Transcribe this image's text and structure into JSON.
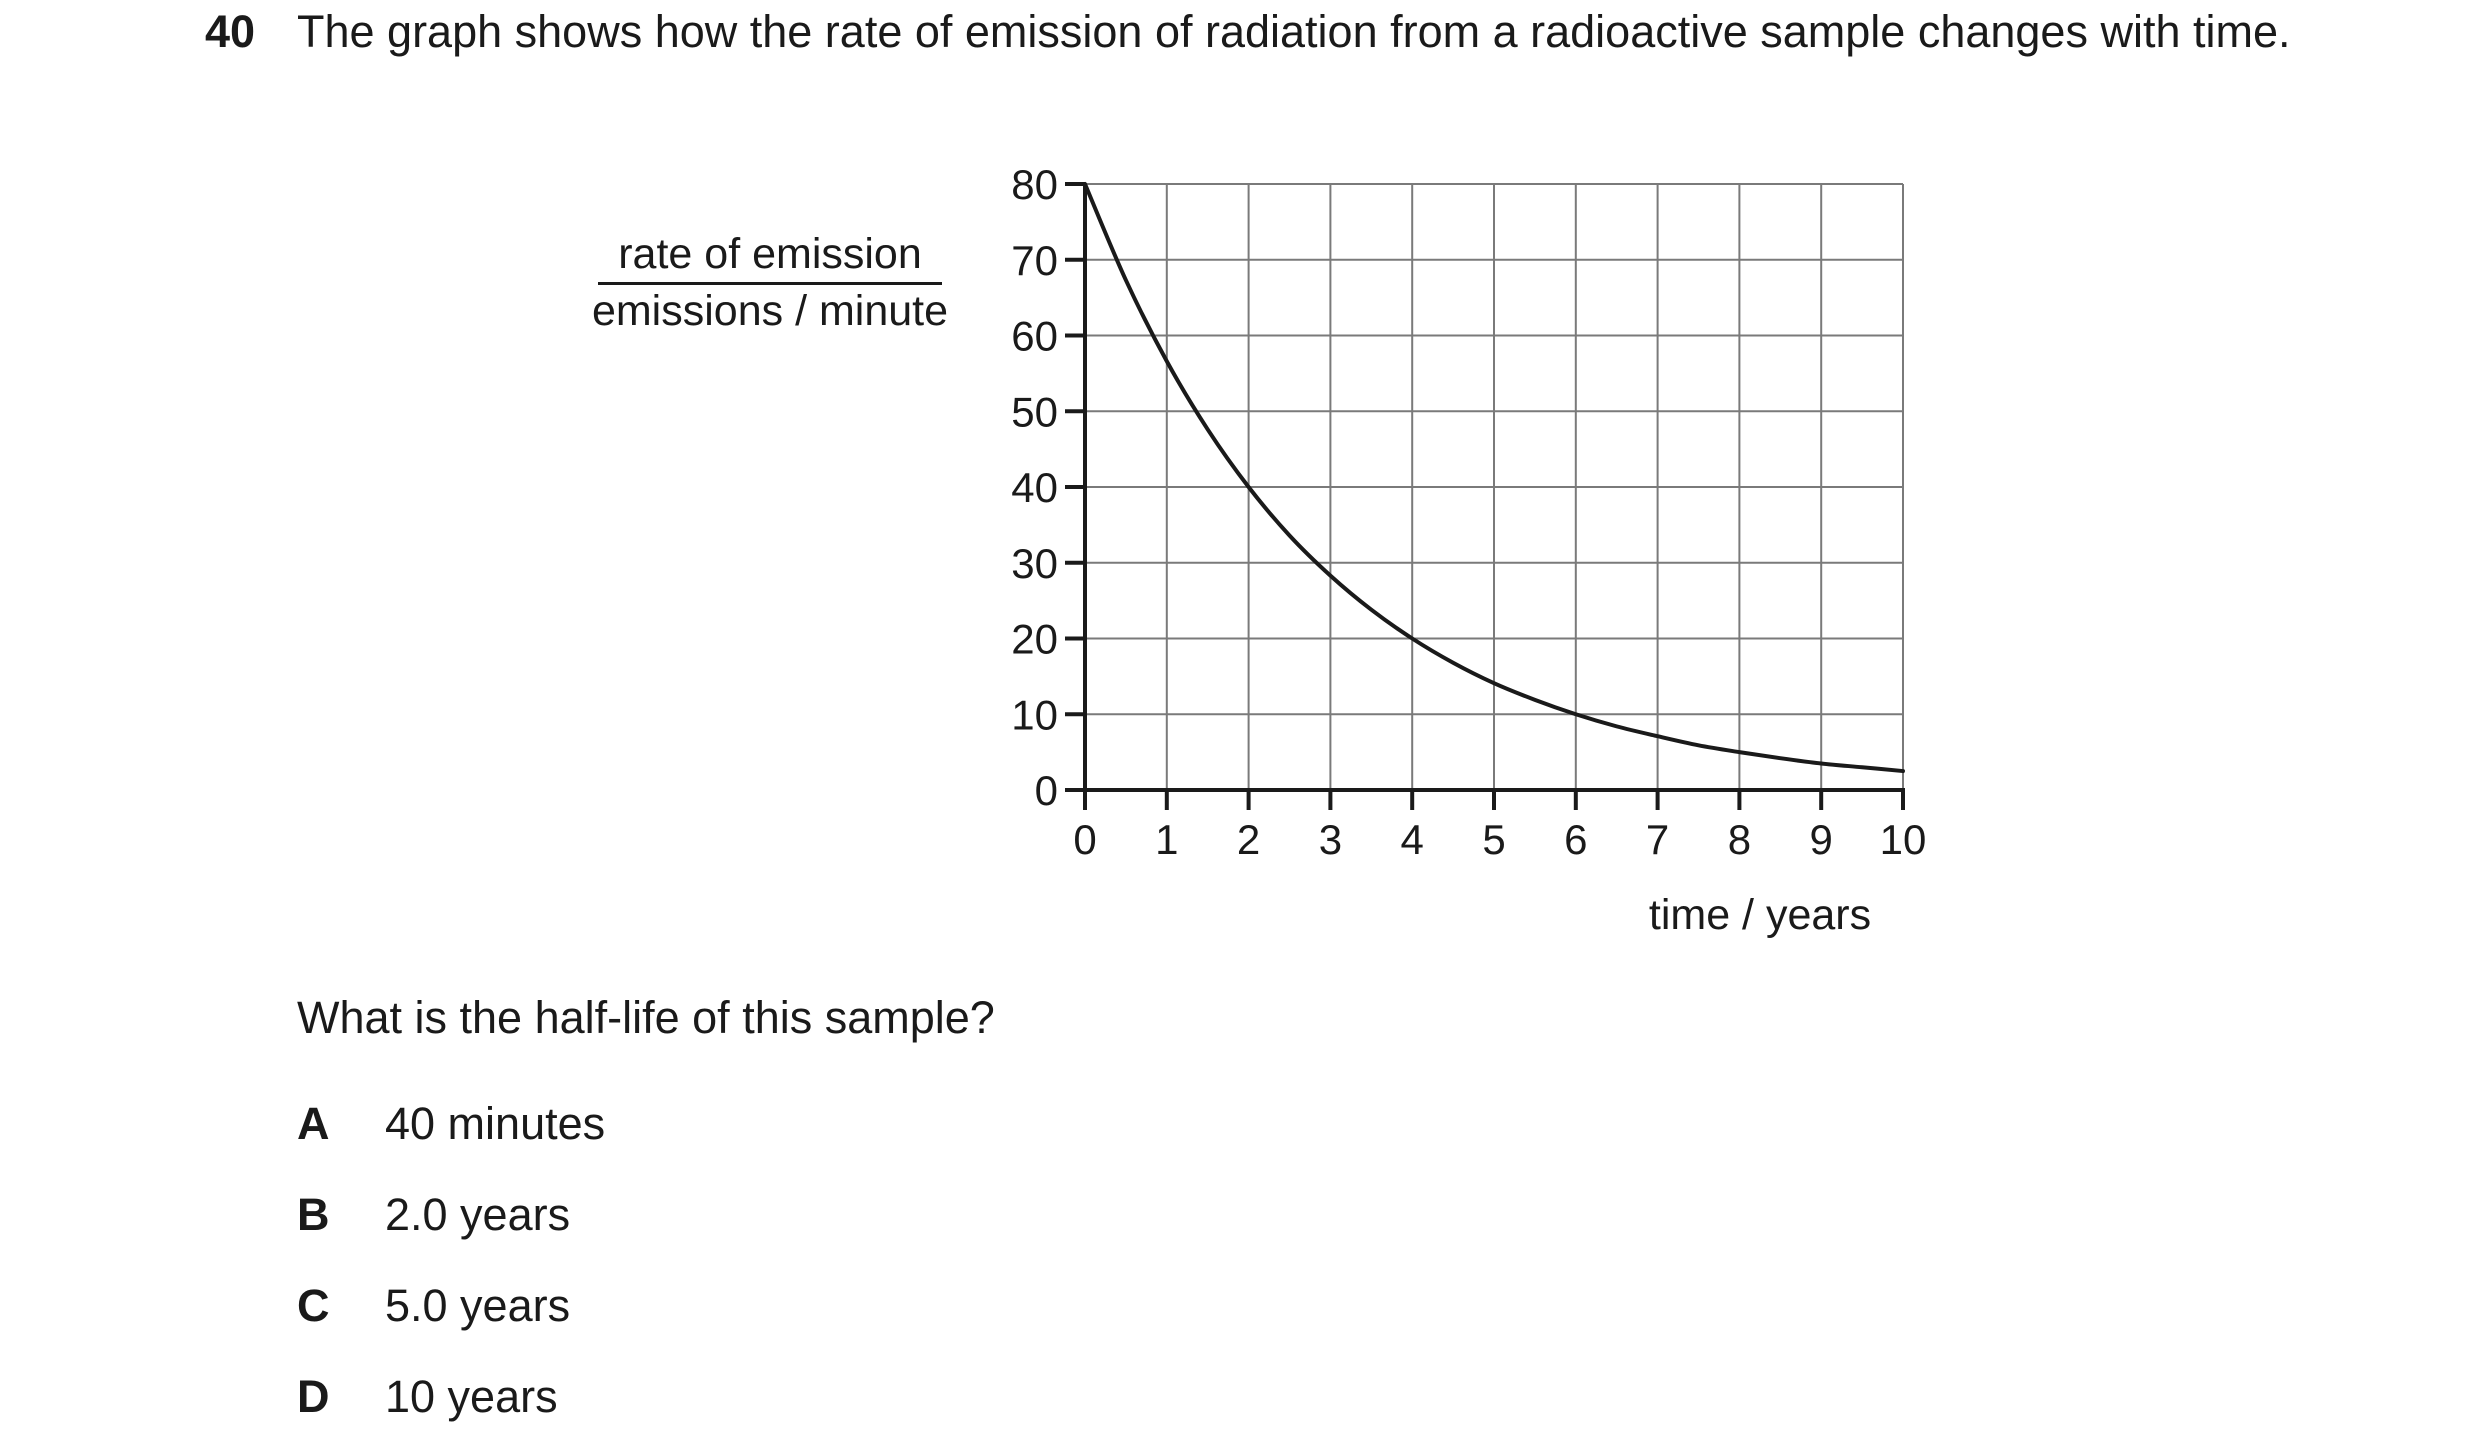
{
  "question": {
    "number": "40",
    "stem": "The graph shows how the rate of emission of radiation from a radioactive sample changes with time.",
    "prompt": "What is the half-life of this sample?",
    "options": [
      {
        "letter": "A",
        "text": "40 minutes"
      },
      {
        "letter": "B",
        "text": "2.0 years"
      },
      {
        "letter": "C",
        "text": "5.0 years"
      },
      {
        "letter": "D",
        "text": "10 years"
      }
    ]
  },
  "chart_data": {
    "type": "line",
    "ylabel_numerator": "rate of emission",
    "ylabel_denominator": "emissions / minute",
    "xlabel": "time / years",
    "xlim": [
      0,
      10
    ],
    "ylim": [
      0,
      80
    ],
    "xticks": [
      "0",
      "1",
      "2",
      "3",
      "4",
      "5",
      "6",
      "7",
      "8",
      "9",
      "10"
    ],
    "yticks": [
      "0",
      "10",
      "20",
      "30",
      "40",
      "50",
      "60",
      "70",
      "80"
    ],
    "grid": true,
    "series": [
      {
        "x": [
          0,
          0.5,
          1,
          1.5,
          2,
          2.5,
          3,
          3.5,
          4,
          4.5,
          5,
          5.5,
          6,
          6.5,
          7,
          7.5,
          8,
          8.5,
          9,
          9.5,
          10
        ],
        "y": [
          80,
          67.3,
          56.6,
          47.6,
          40,
          33.6,
          28.3,
          23.8,
          20,
          16.8,
          14.1,
          11.9,
          10,
          8.4,
          7.1,
          5.9,
          5,
          4.2,
          3.5,
          3,
          2.5
        ]
      }
    ],
    "color": "#1a1a1a",
    "grid_color": "#7a7a7a"
  }
}
